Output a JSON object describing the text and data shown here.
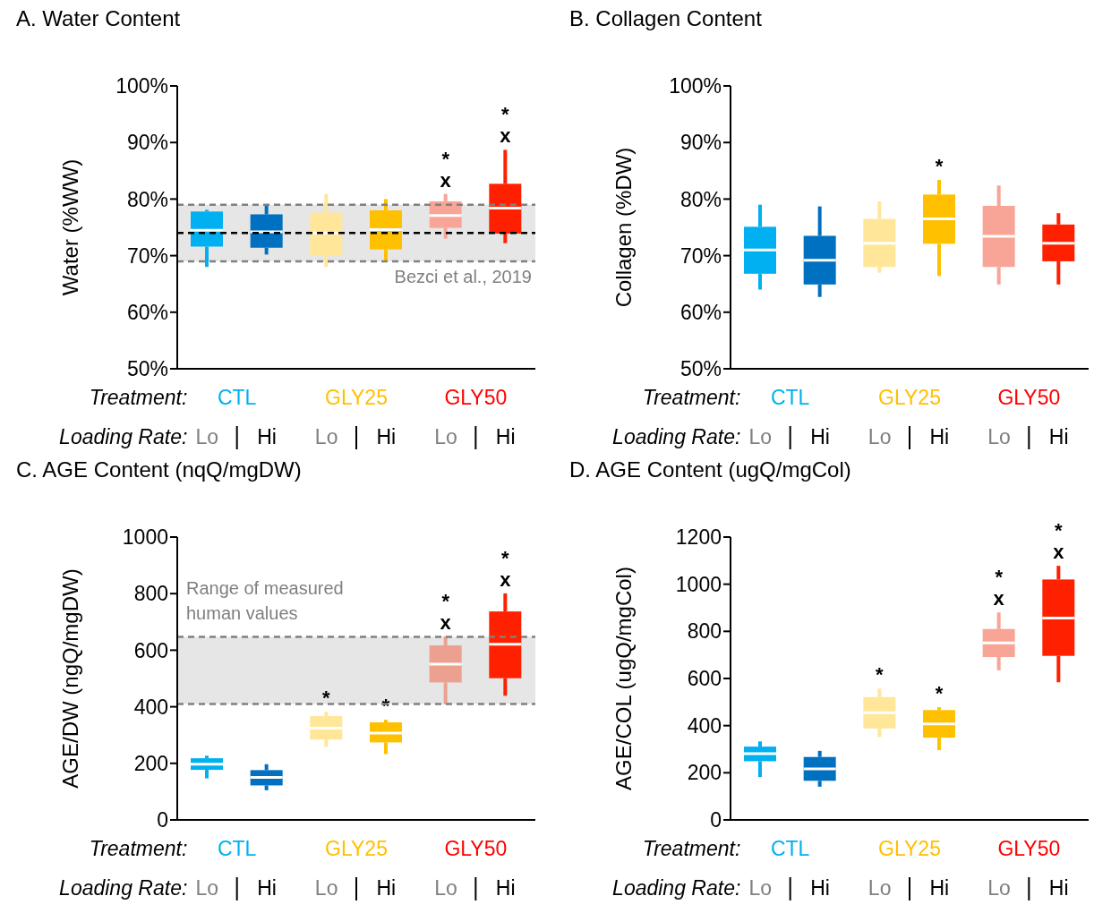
{
  "chart_data": [
    {
      "type": "box",
      "title": "A. Water Content",
      "ylabel": "Water (%WW)",
      "categories": [
        "Lo",
        "Hi",
        "Lo",
        "Hi",
        "Lo",
        "Hi"
      ],
      "ylim": [
        50,
        100
      ],
      "yticks": [
        {
          "value": 50,
          "label": "50%"
        },
        {
          "value": 60,
          "label": "60%"
        },
        {
          "value": 70,
          "label": "70%"
        },
        {
          "value": 80,
          "label": "80%"
        },
        {
          "value": 90,
          "label": "90%"
        },
        {
          "value": 100,
          "label": "100%"
        }
      ],
      "annotations": [
        "Treatment:",
        "Loading Rate:"
      ],
      "bands": [
        {
          "axis": "y",
          "from": 69,
          "to": 79,
          "label": "Bezci et al., 2019",
          "color": "#e6e6e6"
        }
      ],
      "ref_lines": [
        {
          "axis": "y",
          "value": 74,
          "color": "#000000",
          "line_style": "dashed"
        },
        {
          "axis": "y",
          "value": 69,
          "color": "#808080",
          "line_style": "dashed"
        },
        {
          "axis": "y",
          "value": 79,
          "color": "#808080",
          "line_style": "dashed"
        }
      ],
      "series": [
        {
          "name": "CTL",
          "color": "#00b0f0",
          "colors": [
            "#00b0f0",
            "#0070c0",
            null,
            null,
            null,
            null
          ],
          "boxes": [
            {
              "low": 68.0,
              "q1": 71.6,
              "median": 74.5,
              "q3": 77.8,
              "high": 78.1
            },
            {
              "low": 70.2,
              "q1": 71.4,
              "median": 74.2,
              "q3": 77.3,
              "high": 79.0
            },
            null,
            null,
            null,
            null
          ],
          "value_labels": [
            null,
            null,
            null,
            null,
            null,
            null
          ]
        },
        {
          "name": "GLY25",
          "color": "#ffc000",
          "colors": [
            null,
            null,
            "#ffe699",
            "#ffc000",
            null,
            null
          ],
          "boxes": [
            null,
            null,
            {
              "low": 68.0,
              "q1": 70.1,
              "median": 74.0,
              "q3": 77.6,
              "high": 80.9
            },
            {
              "low": 68.9,
              "q1": 71.1,
              "median": 74.6,
              "q3": 78.0,
              "high": 80.0
            },
            null,
            null
          ],
          "value_labels": [
            null,
            null,
            null,
            null,
            null,
            null
          ]
        },
        {
          "name": "GLY50",
          "color": "#ff0000",
          "colors": [
            null,
            null,
            null,
            null,
            "#f8a496",
            "#ff2000"
          ],
          "boxes": [
            null,
            null,
            null,
            null,
            {
              "low": 73.0,
              "q1": 74.9,
              "median": 77.1,
              "q3": 79.6,
              "high": 80.9
            },
            {
              "low": 72.2,
              "q1": 73.9,
              "median": 78.4,
              "q3": 82.7,
              "high": 88.7
            }
          ],
          "value_labels": [
            null,
            null,
            null,
            null,
            "*\nx",
            "*\nx"
          ]
        }
      ]
    },
    {
      "type": "box",
      "title": "B. Collagen Content",
      "ylabel": "Collagen (%DW)",
      "categories": [
        "Lo",
        "Hi",
        "Lo",
        "Hi",
        "Lo",
        "Hi"
      ],
      "ylim": [
        50,
        100
      ],
      "yticks": [
        {
          "value": 50,
          "label": "50%"
        },
        {
          "value": 60,
          "label": "60%"
        },
        {
          "value": 70,
          "label": "70%"
        },
        {
          "value": 80,
          "label": "80%"
        },
        {
          "value": 90,
          "label": "90%"
        },
        {
          "value": 100,
          "label": "100%"
        }
      ],
      "annotations": [
        "Treatment:",
        "Loading Rate:"
      ],
      "series": [
        {
          "name": "CTL",
          "color": "#00b0f0",
          "colors": [
            "#00b0f0",
            "#0070c0",
            null,
            null,
            null,
            null
          ],
          "boxes": [
            {
              "low": 64.0,
              "q1": 66.8,
              "median": 71.0,
              "q3": 75.1,
              "high": 79.0
            },
            {
              "low": 62.7,
              "q1": 64.9,
              "median": 69.2,
              "q3": 73.5,
              "high": 78.7
            },
            null,
            null,
            null,
            null
          ],
          "value_labels": [
            null,
            null,
            null,
            null,
            null,
            null
          ]
        },
        {
          "name": "GLY25",
          "color": "#ffc000",
          "colors": [
            null,
            null,
            "#ffe699",
            "#ffc000",
            null,
            null
          ],
          "boxes": [
            null,
            null,
            {
              "low": 67.0,
              "q1": 68.0,
              "median": 72.2,
              "q3": 76.5,
              "high": 79.6
            },
            {
              "low": 66.4,
              "q1": 72.1,
              "median": 76.5,
              "q3": 80.8,
              "high": 83.4
            },
            null,
            null
          ],
          "value_labels": [
            null,
            null,
            null,
            "*",
            null,
            null
          ]
        },
        {
          "name": "GLY50",
          "color": "#ff0000",
          "colors": [
            null,
            null,
            null,
            null,
            "#f8a496",
            "#ff2000"
          ],
          "boxes": [
            null,
            null,
            null,
            null,
            {
              "low": 64.9,
              "q1": 68.0,
              "median": 73.4,
              "q3": 78.8,
              "high": 82.4
            },
            {
              "low": 64.9,
              "q1": 69.0,
              "median": 72.2,
              "q3": 75.5,
              "high": 77.5
            }
          ],
          "value_labels": [
            null,
            null,
            null,
            null,
            null,
            null
          ]
        }
      ]
    },
    {
      "type": "box",
      "title": "C. AGE Content (nqQ/mgDW)",
      "ylabel": "AGE/DW (ngQ/mgDW)",
      "categories": [
        "Lo",
        "Hi",
        "Lo",
        "Hi",
        "Lo",
        "Hi"
      ],
      "ylim": [
        0,
        1000
      ],
      "yticks": [
        0,
        200,
        400,
        600,
        800,
        1000
      ],
      "annotations": [
        "Treatment:",
        "Loading Rate:"
      ],
      "bands": [
        {
          "axis": "y",
          "from": 410,
          "to": 647,
          "label": "Range of measured human values",
          "color": "#e6e6e6"
        }
      ],
      "ref_lines": [
        {
          "axis": "y",
          "value": 410,
          "color": "#808080",
          "line_style": "dashed"
        },
        {
          "axis": "y",
          "value": 647,
          "color": "#808080",
          "line_style": "dashed"
        }
      ],
      "series": [
        {
          "name": "CTL",
          "color": "#00b0f0",
          "colors": [
            "#00b0f0",
            "#0070c0",
            null,
            null,
            null,
            null
          ],
          "boxes": [
            {
              "low": 147,
              "q1": 177,
              "median": 197,
              "q3": 218,
              "high": 227
            },
            {
              "low": 105,
              "q1": 122,
              "median": 150,
              "q3": 176,
              "high": 197
            },
            null,
            null,
            null,
            null
          ],
          "value_labels": [
            null,
            null,
            null,
            null,
            null,
            null
          ]
        },
        {
          "name": "GLY25",
          "color": "#ffc000",
          "colors": [
            null,
            null,
            "#ffe699",
            "#ffc000",
            null,
            null
          ],
          "boxes": [
            null,
            null,
            {
              "low": 259,
              "q1": 284,
              "median": 324,
              "q3": 367,
              "high": 382
            },
            {
              "low": 233,
              "q1": 274,
              "median": 307,
              "q3": 345,
              "high": 354
            },
            null,
            null
          ],
          "value_labels": [
            null,
            null,
            "*",
            "*",
            null,
            null
          ]
        },
        {
          "name": "GLY50",
          "color": "#ff0000",
          "colors": [
            null,
            null,
            null,
            null,
            "#eba090",
            "#ff2000"
          ],
          "boxes": [
            null,
            null,
            null,
            null,
            {
              "low": 409,
              "q1": 486,
              "median": 551,
              "q3": 617,
              "high": 649
            },
            {
              "low": 439,
              "q1": 501,
              "median": 621,
              "q3": 737,
              "high": 801
            }
          ],
          "value_labels": [
            null,
            null,
            null,
            null,
            "*\nx",
            "*\nx"
          ]
        }
      ]
    },
    {
      "type": "box",
      "title": "D. AGE Content (ugQ/mgCol)",
      "ylabel": "AGE/COL (ugQ/mgCol)",
      "categories": [
        "Lo",
        "Hi",
        "Lo",
        "Hi",
        "Lo",
        "Hi"
      ],
      "ylim": [
        0,
        1200
      ],
      "yticks": [
        0,
        200,
        400,
        600,
        800,
        1000,
        1200
      ],
      "annotations": [
        "Treatment:",
        "Loading Rate:"
      ],
      "series": [
        {
          "name": "CTL",
          "color": "#00b0f0",
          "colors": [
            "#00b0f0",
            "#0070c0",
            null,
            null,
            null,
            null
          ],
          "boxes": [
            {
              "low": 182,
              "q1": 249,
              "median": 281,
              "q3": 311,
              "high": 333
            },
            {
              "low": 141,
              "q1": 166,
              "median": 216,
              "q3": 267,
              "high": 293
            },
            null,
            null,
            null,
            null
          ],
          "value_labels": [
            null,
            null,
            null,
            null,
            null,
            null
          ]
        },
        {
          "name": "GLY25",
          "color": "#ffc000",
          "colors": [
            null,
            null,
            "#ffe699",
            "#ffc000",
            null,
            null
          ],
          "boxes": [
            null,
            null,
            {
              "low": 352,
              "q1": 388,
              "median": 455,
              "q3": 521,
              "high": 557
            },
            {
              "low": 296,
              "q1": 349,
              "median": 407,
              "q3": 466,
              "high": 478
            },
            null,
            null
          ],
          "value_labels": [
            null,
            null,
            "*",
            "*",
            null,
            null
          ]
        },
        {
          "name": "GLY50",
          "color": "#ff0000",
          "colors": [
            null,
            null,
            null,
            null,
            "#f8a496",
            "#ff2000"
          ],
          "boxes": [
            null,
            null,
            null,
            null,
            {
              "low": 635,
              "q1": 691,
              "median": 751,
              "q3": 810,
              "high": 880
            },
            {
              "low": 584,
              "q1": 696,
              "median": 856,
              "q3": 1020,
              "high": 1078
            }
          ],
          "value_labels": [
            null,
            null,
            null,
            null,
            "*\nx",
            "*\nx"
          ]
        }
      ]
    }
  ]
}
